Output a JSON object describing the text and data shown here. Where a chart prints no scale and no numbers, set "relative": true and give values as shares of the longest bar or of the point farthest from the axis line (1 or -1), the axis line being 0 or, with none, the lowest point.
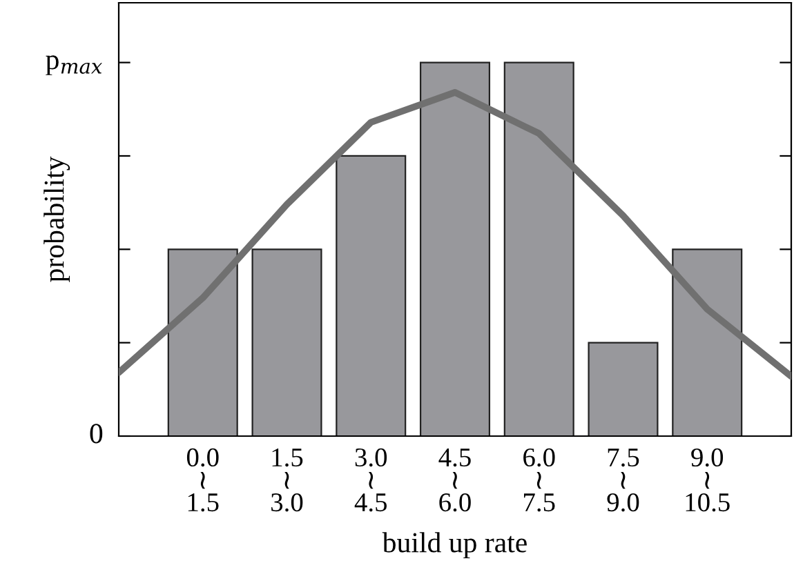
{
  "chart_data": {
    "type": "bar",
    "xlabel": "build up rate",
    "ylabel": "probability",
    "categories": [
      null,
      "0.0\n≀\n1.5",
      "1.5\n≀\n3.0",
      "3.0\n≀\n4.5",
      "4.5\n≀\n6.0",
      "6.0\n≀\n7.5",
      "7.5\n≀\n9.0",
      "9.0\n≀\n10.5",
      null
    ],
    "values": [
      null,
      0.5,
      0.5,
      0.75,
      1,
      1,
      0.25,
      0.5,
      null
    ],
    "color": "#98989c",
    "relative": true,
    "annotations": [
      "0",
      "p$_{max}$"
    ],
    "grid": false,
    "legend": false,
    "series": [
      {
        "type": "line",
        "color": "#707070",
        "values": [
          0.17,
          0.37,
          0.62,
          0.84,
          0.92,
          0.81,
          0.59,
          0.34,
          0.16
        ]
      }
    ]
  }
}
